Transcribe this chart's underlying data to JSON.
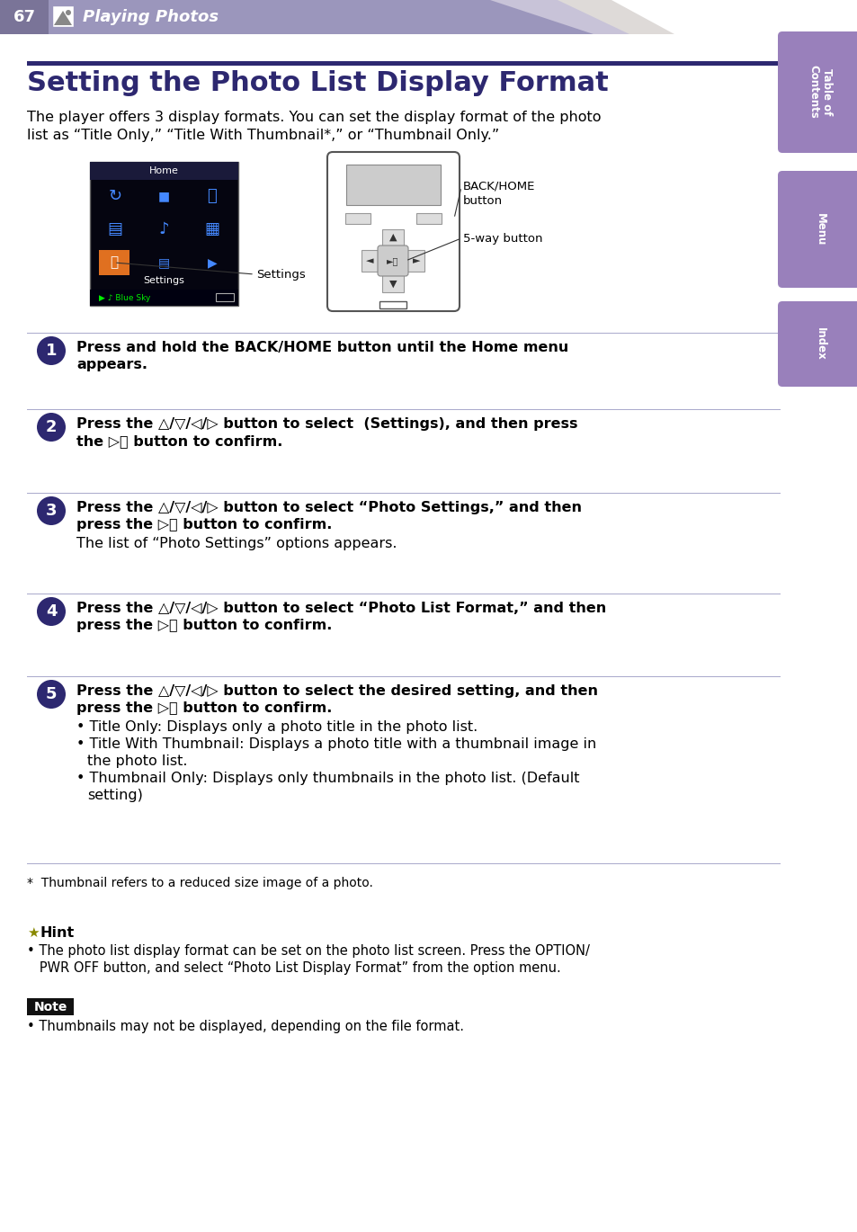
{
  "page_number": "67",
  "page_title": "Playing Photos",
  "header_bg": "#9b96bc",
  "header_text_color": "#ffffff",
  "sidebar_color": "#9980bb",
  "title_bar_color": "#2d2870",
  "title": "Setting the Photo List Display Format",
  "title_color": "#2d2870",
  "intro_line1": "The player offers 3 display formats. You can set the display format of the photo",
  "intro_line2": "list as “Title Only,” “Title With Thumbnail*,” or “Thumbnail Only.”",
  "sidebar_tabs": [
    "Table of\nContents",
    "Menu",
    "Index"
  ],
  "step_circle_color": "#2d2870",
  "steps": [
    {
      "num": "1",
      "bold_line1": "Press and hold the BACK/HOME button until the Home menu",
      "bold_line2": "appears.",
      "normal": ""
    },
    {
      "num": "2",
      "bold_line1": "Press the △/▽/◁/▷ button to select  (Settings), and then press",
      "bold_line2": "the ▷⎯ button to confirm.",
      "normal": ""
    },
    {
      "num": "3",
      "bold_line1": "Press the △/▽/◁/▷ button to select “Photo Settings,” and then",
      "bold_line2": "press the ▷⎯ button to confirm.",
      "normal": "The list of “Photo Settings” options appears."
    },
    {
      "num": "4",
      "bold_line1": "Press the △/▽/◁/▷ button to select “Photo List Format,” and then",
      "bold_line2": "press the ▷⎯ button to confirm.",
      "normal": ""
    },
    {
      "num": "5",
      "bold_line1": "Press the △/▽/◁/▷ button to select the desired setting, and then",
      "bold_line2": "press the ▷⎯ button to confirm.",
      "normal": "",
      "bullets": [
        "Title Only: Displays only a photo title in the photo list.",
        "Title With Thumbnail: Displays a photo title with a thumbnail image in\n    the photo list.",
        "Thumbnail Only: Displays only thumbnails in the photo list. (Default\n    setting)"
      ]
    }
  ],
  "footnote": "*  Thumbnail refers to a reduced size image of a photo.",
  "hint_title": "Hint",
  "hint_bullet": "The photo list display format can be set on the photo list screen. Press the OPTION/\nPWR OFF button, and select “Photo List Display Format” from the option menu.",
  "note_title": "Note",
  "note_bullet": "Thumbnails may not be displayed, depending on the file format.",
  "divider_color": "#aaaacc",
  "text_color": "#000000",
  "body_bg": "#ffffff",
  "settings_label": "Settings",
  "backhome_label": "BACK/HOME\nbutton",
  "fiveway_label": "5-way button"
}
